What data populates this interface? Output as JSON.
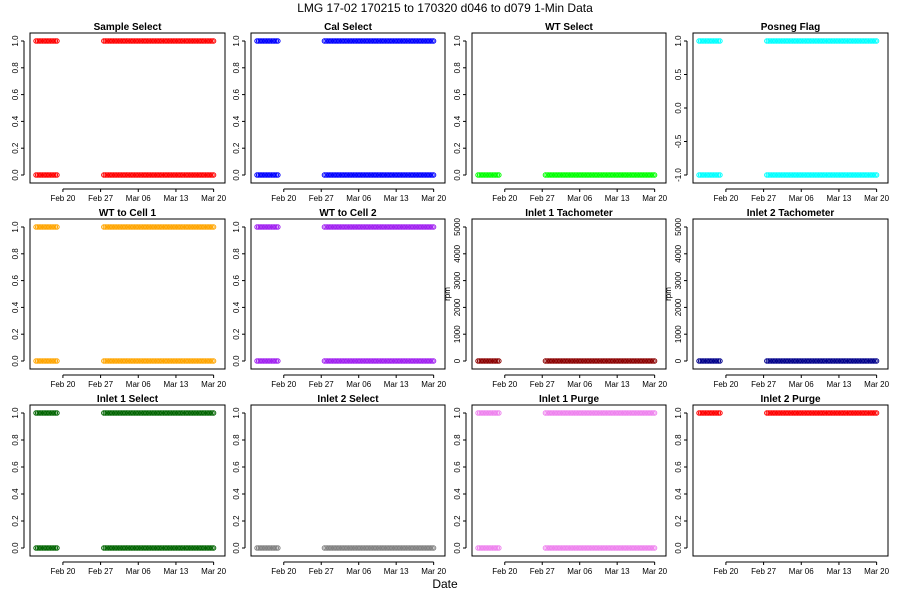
{
  "figure": {
    "title": "LMG   17-02    170215 to 170320    d046 to d079   1-Min Data",
    "xlabel": "Date",
    "x_ticks": [
      "Feb 20",
      "Feb 27",
      "Mar 06",
      "Mar 13",
      "Mar 20"
    ],
    "x_tick_days": [
      5,
      12,
      19,
      26,
      33
    ]
  },
  "chart_data": [
    {
      "type": "scatter",
      "title": "Sample Select",
      "ylabel": "",
      "color": "#ff0000",
      "marker": "open-circle",
      "ylim": [
        0,
        1
      ],
      "yticks": [
        "0.0",
        "0.2",
        "0.4",
        "0.6",
        "0.8",
        "1.0"
      ],
      "ytick_values": [
        0,
        0.2,
        0.4,
        0.6,
        0.8,
        1.0
      ],
      "levels": [
        0,
        1
      ],
      "segments": [
        [
          0,
          4.1
        ],
        [
          12.6,
          33.2
        ]
      ]
    },
    {
      "type": "scatter",
      "title": "Cal Select",
      "ylabel": "",
      "color": "#0000ff",
      "marker": "open-circle",
      "ylim": [
        0,
        1
      ],
      "yticks": [
        "0.0",
        "0.2",
        "0.4",
        "0.6",
        "0.8",
        "1.0"
      ],
      "ytick_values": [
        0,
        0.2,
        0.4,
        0.6,
        0.8,
        1.0
      ],
      "levels": [
        0,
        1
      ],
      "segments": [
        [
          0,
          4.1
        ],
        [
          12.6,
          33.2
        ]
      ]
    },
    {
      "type": "scatter",
      "title": "WT Select",
      "ylabel": "",
      "color": "#00ff00",
      "marker": "open-circle",
      "ylim": [
        0,
        1
      ],
      "yticks": [
        "0.0",
        "0.2",
        "0.4",
        "0.6",
        "0.8",
        "1.0"
      ],
      "ytick_values": [
        0,
        0.2,
        0.4,
        0.6,
        0.8,
        1.0
      ],
      "levels": [
        0
      ],
      "segments": [
        [
          0,
          4.1
        ],
        [
          12.6,
          33.2
        ]
      ]
    },
    {
      "type": "scatter",
      "title": "Posneg Flag",
      "ylabel": "",
      "color": "#00ffff",
      "marker": "open-circle",
      "ylim": [
        -1,
        1
      ],
      "yticks": [
        "-1.0",
        "-0.5",
        "0.0",
        "0.5",
        "1.0"
      ],
      "ytick_values": [
        -1,
        -0.5,
        0,
        0.5,
        1
      ],
      "levels": [
        -1,
        1
      ],
      "segments": [
        [
          0,
          4.1
        ],
        [
          12.6,
          33.2
        ]
      ]
    },
    {
      "type": "scatter",
      "title": "WT to Cell 1",
      "ylabel": "",
      "color": "#ffa500",
      "marker": "open-circle",
      "ylim": [
        0,
        1
      ],
      "yticks": [
        "0.0",
        "0.2",
        "0.4",
        "0.6",
        "0.8",
        "1.0"
      ],
      "ytick_values": [
        0,
        0.2,
        0.4,
        0.6,
        0.8,
        1.0
      ],
      "levels": [
        0,
        1
      ],
      "segments": [
        [
          0,
          4.1
        ],
        [
          12.6,
          33.2
        ]
      ]
    },
    {
      "type": "scatter",
      "title": "WT to Cell 2",
      "ylabel": "",
      "color": "#a020f0",
      "marker": "open-circle",
      "ylim": [
        0,
        1
      ],
      "yticks": [
        "0.0",
        "0.2",
        "0.4",
        "0.6",
        "0.8",
        "1.0"
      ],
      "ytick_values": [
        0,
        0.2,
        0.4,
        0.6,
        0.8,
        1.0
      ],
      "levels": [
        0,
        1
      ],
      "segments": [
        [
          0,
          4.1
        ],
        [
          12.6,
          33.2
        ]
      ]
    },
    {
      "type": "scatter",
      "title": "Inlet 1 Tachometer",
      "ylabel": "rpm",
      "color": "#8b0000",
      "marker": "open-circle",
      "ylim": [
        0,
        5000
      ],
      "yticks": [
        "0",
        "1000",
        "2000",
        "3000",
        "4000",
        "5000"
      ],
      "ytick_values": [
        0,
        1000,
        2000,
        3000,
        4000,
        5000
      ],
      "levels": [
        0
      ],
      "segments": [
        [
          0,
          4.1
        ],
        [
          12.6,
          33.2
        ]
      ]
    },
    {
      "type": "scatter",
      "title": "Inlet 2 Tachometer",
      "ylabel": "rpm",
      "color": "#00008b",
      "marker": "open-circle",
      "ylim": [
        0,
        5000
      ],
      "yticks": [
        "0",
        "1000",
        "2000",
        "3000",
        "4000",
        "5000"
      ],
      "ytick_values": [
        0,
        1000,
        2000,
        3000,
        4000,
        5000
      ],
      "levels": [
        0
      ],
      "segments": [
        [
          0,
          4.1
        ],
        [
          12.6,
          33.2
        ]
      ]
    },
    {
      "type": "scatter",
      "title": "Inlet 1 Select",
      "ylabel": "",
      "color": "#006400",
      "marker": "open-circle",
      "ylim": [
        0,
        1
      ],
      "yticks": [
        "0.0",
        "0.2",
        "0.4",
        "0.6",
        "0.8",
        "1.0"
      ],
      "ytick_values": [
        0,
        0.2,
        0.4,
        0.6,
        0.8,
        1.0
      ],
      "levels": [
        0,
        1
      ],
      "segments": [
        [
          0,
          4.1
        ],
        [
          12.6,
          33.2
        ]
      ]
    },
    {
      "type": "scatter",
      "title": "Inlet 2 Select",
      "ylabel": "",
      "color": "#808080",
      "marker": "open-circle",
      "ylim": [
        0,
        1
      ],
      "yticks": [
        "0.0",
        "0.2",
        "0.4",
        "0.6",
        "0.8",
        "1.0"
      ],
      "ytick_values": [
        0,
        0.2,
        0.4,
        0.6,
        0.8,
        1.0
      ],
      "levels": [
        0
      ],
      "segments": [
        [
          0,
          4.1
        ],
        [
          12.6,
          33.2
        ]
      ]
    },
    {
      "type": "scatter",
      "title": "Inlet 1 Purge",
      "ylabel": "",
      "color": "#ee82ee",
      "marker": "open-circle",
      "ylim": [
        0,
        1
      ],
      "yticks": [
        "0.0",
        "0.2",
        "0.4",
        "0.6",
        "0.8",
        "1.0"
      ],
      "ytick_values": [
        0,
        0.2,
        0.4,
        0.6,
        0.8,
        1.0
      ],
      "levels": [
        0,
        1
      ],
      "segments": [
        [
          0,
          4.1
        ],
        [
          12.6,
          33.2
        ]
      ]
    },
    {
      "type": "scatter",
      "title": "Inlet 2 Purge",
      "ylabel": "",
      "color": "#ff0000",
      "marker": "open-circle",
      "ylim": [
        0,
        1
      ],
      "yticks": [
        "0.0",
        "0.2",
        "0.4",
        "0.6",
        "0.8",
        "1.0"
      ],
      "ytick_values": [
        0,
        0.2,
        0.4,
        0.6,
        0.8,
        1.0
      ],
      "levels": [
        1
      ],
      "segments": [
        [
          0,
          4.1
        ],
        [
          12.6,
          33.2
        ]
      ]
    }
  ]
}
